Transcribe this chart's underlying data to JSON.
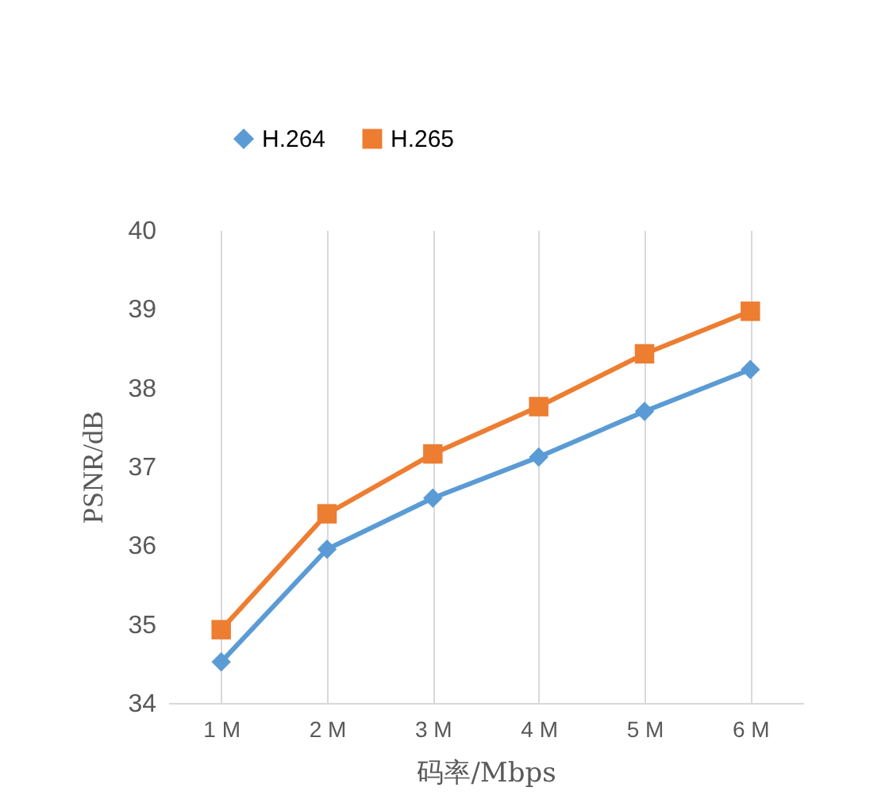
{
  "chart_data": {
    "type": "line",
    "xlabel": "码率/Mbps",
    "ylabel": "PSNR/dB",
    "categories": [
      "1 M",
      "2 M",
      "3 M",
      "4 M",
      "5 M",
      "6 M"
    ],
    "series": [
      {
        "name": "H.264",
        "color": "#5b9bd5",
        "marker": "diamond",
        "values": [
          34.52,
          35.95,
          36.6,
          37.12,
          37.7,
          38.23
        ]
      },
      {
        "name": "H.265",
        "color": "#ed7d31",
        "marker": "square",
        "values": [
          34.93,
          36.4,
          37.16,
          37.76,
          38.43,
          38.97
        ]
      }
    ],
    "ylim": [
      34,
      40
    ],
    "yticks": [
      34,
      35,
      36,
      37,
      38,
      39,
      40
    ],
    "grid": "x",
    "legend": "top"
  }
}
